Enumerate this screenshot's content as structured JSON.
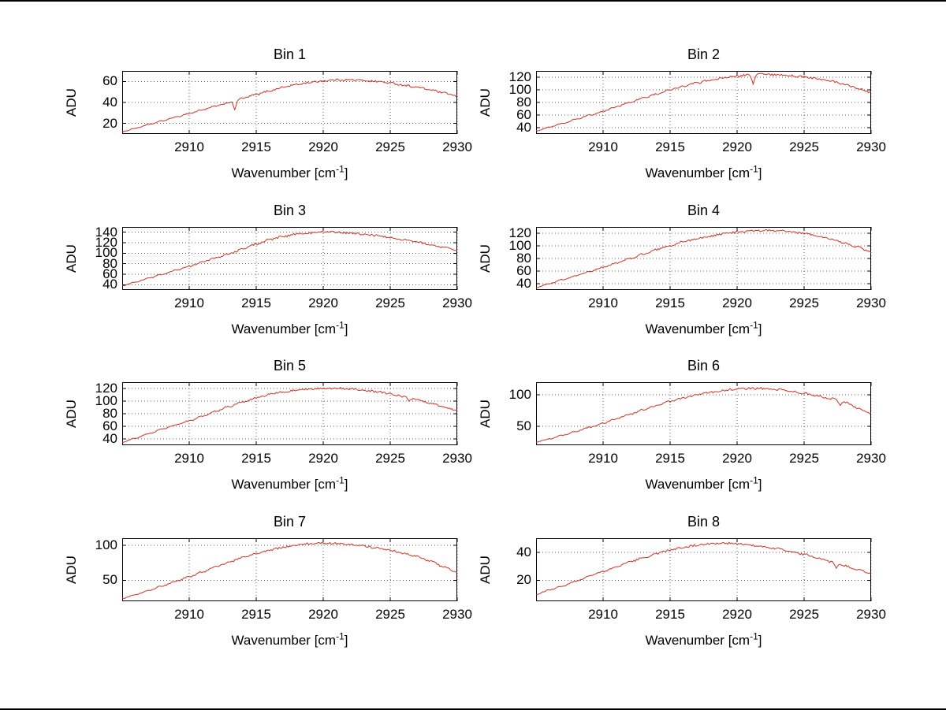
{
  "figure": {
    "background": "#ffffff",
    "line_color": "#cc3322",
    "grid_color": "#606060",
    "axes_color": "#000000"
  },
  "chart_data": {
    "type": "line",
    "layout": "4 rows x 2 columns of subplots",
    "xlabel_parts": {
      "pre": "Wavenumber [cm",
      "sup": "-1",
      "post": "]"
    },
    "ylabel": "ADU",
    "xlim": [
      2905,
      2930
    ],
    "xticks": [
      2910,
      2915,
      2920,
      2925,
      2930
    ],
    "grid": "dotted",
    "legend": "none",
    "x_control": [
      2905,
      2906,
      2907,
      2908,
      2909,
      2910,
      2911,
      2912,
      2913,
      2914,
      2915,
      2916,
      2917,
      2918,
      2919,
      2920,
      2921,
      2922,
      2923,
      2924,
      2925,
      2926,
      2927,
      2928,
      2929,
      2930
    ],
    "subplots": [
      {
        "title": "Bin 1",
        "ylim": [
          10,
          70
        ],
        "yticks": [
          20,
          40,
          60
        ],
        "y_control": [
          12,
          15.5,
          19,
          22.5,
          26,
          29.5,
          33,
          36.5,
          40,
          44,
          47.5,
          51,
          54.5,
          57,
          59,
          60.5,
          61.5,
          61.5,
          61,
          60,
          58.5,
          56.5,
          54.5,
          52,
          49,
          46
        ],
        "spikes": [
          {
            "x": 2913.4,
            "y": 33
          }
        ]
      },
      {
        "title": "Bin 2",
        "ylim": [
          30,
          130
        ],
        "yticks": [
          40,
          60,
          80,
          100,
          120
        ],
        "y_control": [
          35,
          41,
          47,
          53.5,
          60,
          66,
          73,
          80,
          87,
          93.5,
          100,
          106,
          111,
          115.5,
          119,
          122,
          124,
          124.5,
          124,
          122.5,
          120.5,
          117.5,
          113.5,
          108.5,
          102.5,
          96
        ],
        "spikes": [
          {
            "x": 2921.2,
            "y": 109
          }
        ]
      },
      {
        "title": "Bin 3",
        "ylim": [
          30,
          150
        ],
        "yticks": [
          40,
          60,
          80,
          100,
          120,
          140
        ],
        "y_control": [
          38,
          45,
          52.5,
          60,
          67.5,
          75,
          83,
          91,
          99,
          108,
          117,
          126,
          132,
          136.5,
          139,
          140,
          140,
          138.5,
          136.5,
          133.5,
          130,
          126,
          121.5,
          116.5,
          111,
          105
        ],
        "spikes": []
      },
      {
        "title": "Bin 4",
        "ylim": [
          30,
          130
        ],
        "yticks": [
          40,
          60,
          80,
          100,
          120
        ],
        "y_control": [
          34,
          40,
          46.5,
          53,
          59.5,
          66,
          73,
          80,
          87,
          94,
          100.5,
          106.5,
          111.5,
          115.5,
          119,
          121.5,
          123.5,
          124.5,
          124,
          122.5,
          119.5,
          115.5,
          111,
          105,
          98,
          90
        ],
        "spikes": []
      },
      {
        "title": "Bin 5",
        "ylim": [
          30,
          130
        ],
        "yticks": [
          40,
          60,
          80,
          100,
          120
        ],
        "y_control": [
          35,
          41.5,
          48.5,
          55.5,
          62,
          68.5,
          76,
          84,
          91.5,
          98.5,
          105,
          110.5,
          114.5,
          117.5,
          119.5,
          120.5,
          120.5,
          119.5,
          117.5,
          115,
          111.5,
          107,
          102,
          96.5,
          90.5,
          85
        ],
        "spikes": [
          {
            "x": 2926.4,
            "y": 100
          }
        ]
      },
      {
        "title": "Bin 6",
        "ylim": [
          20,
          120
        ],
        "yticks": [
          50,
          100
        ],
        "y_control": [
          25,
          30,
          36,
          42,
          48.5,
          55,
          62,
          69,
          76,
          83,
          89.5,
          95,
          100,
          104,
          107,
          109,
          110,
          110,
          108.5,
          106,
          102.5,
          98.5,
          94,
          88.5,
          79,
          70
        ],
        "spikes": [
          {
            "x": 2927.7,
            "y": 83
          }
        ]
      },
      {
        "title": "Bin 7",
        "ylim": [
          20,
          110
        ],
        "yticks": [
          50,
          100
        ],
        "y_control": [
          24,
          29.5,
          35.5,
          42,
          48.5,
          55,
          62,
          69,
          76,
          82.5,
          88,
          93,
          97,
          100,
          102,
          103,
          102.5,
          101,
          99,
          96,
          92.5,
          88.5,
          84,
          77,
          69,
          61
        ],
        "spikes": []
      },
      {
        "title": "Bin 8",
        "ylim": [
          5,
          50
        ],
        "yticks": [
          20,
          40
        ],
        "y_control": [
          10,
          13,
          16,
          19.5,
          23,
          26,
          29.5,
          33,
          36,
          39,
          41.5,
          43.5,
          45,
          46,
          46.5,
          46,
          45,
          44,
          42.5,
          40.5,
          38.5,
          36,
          33,
          30.5,
          27.5,
          25
        ],
        "spikes": [
          {
            "x": 2927.4,
            "y": 28.5
          }
        ]
      }
    ]
  }
}
